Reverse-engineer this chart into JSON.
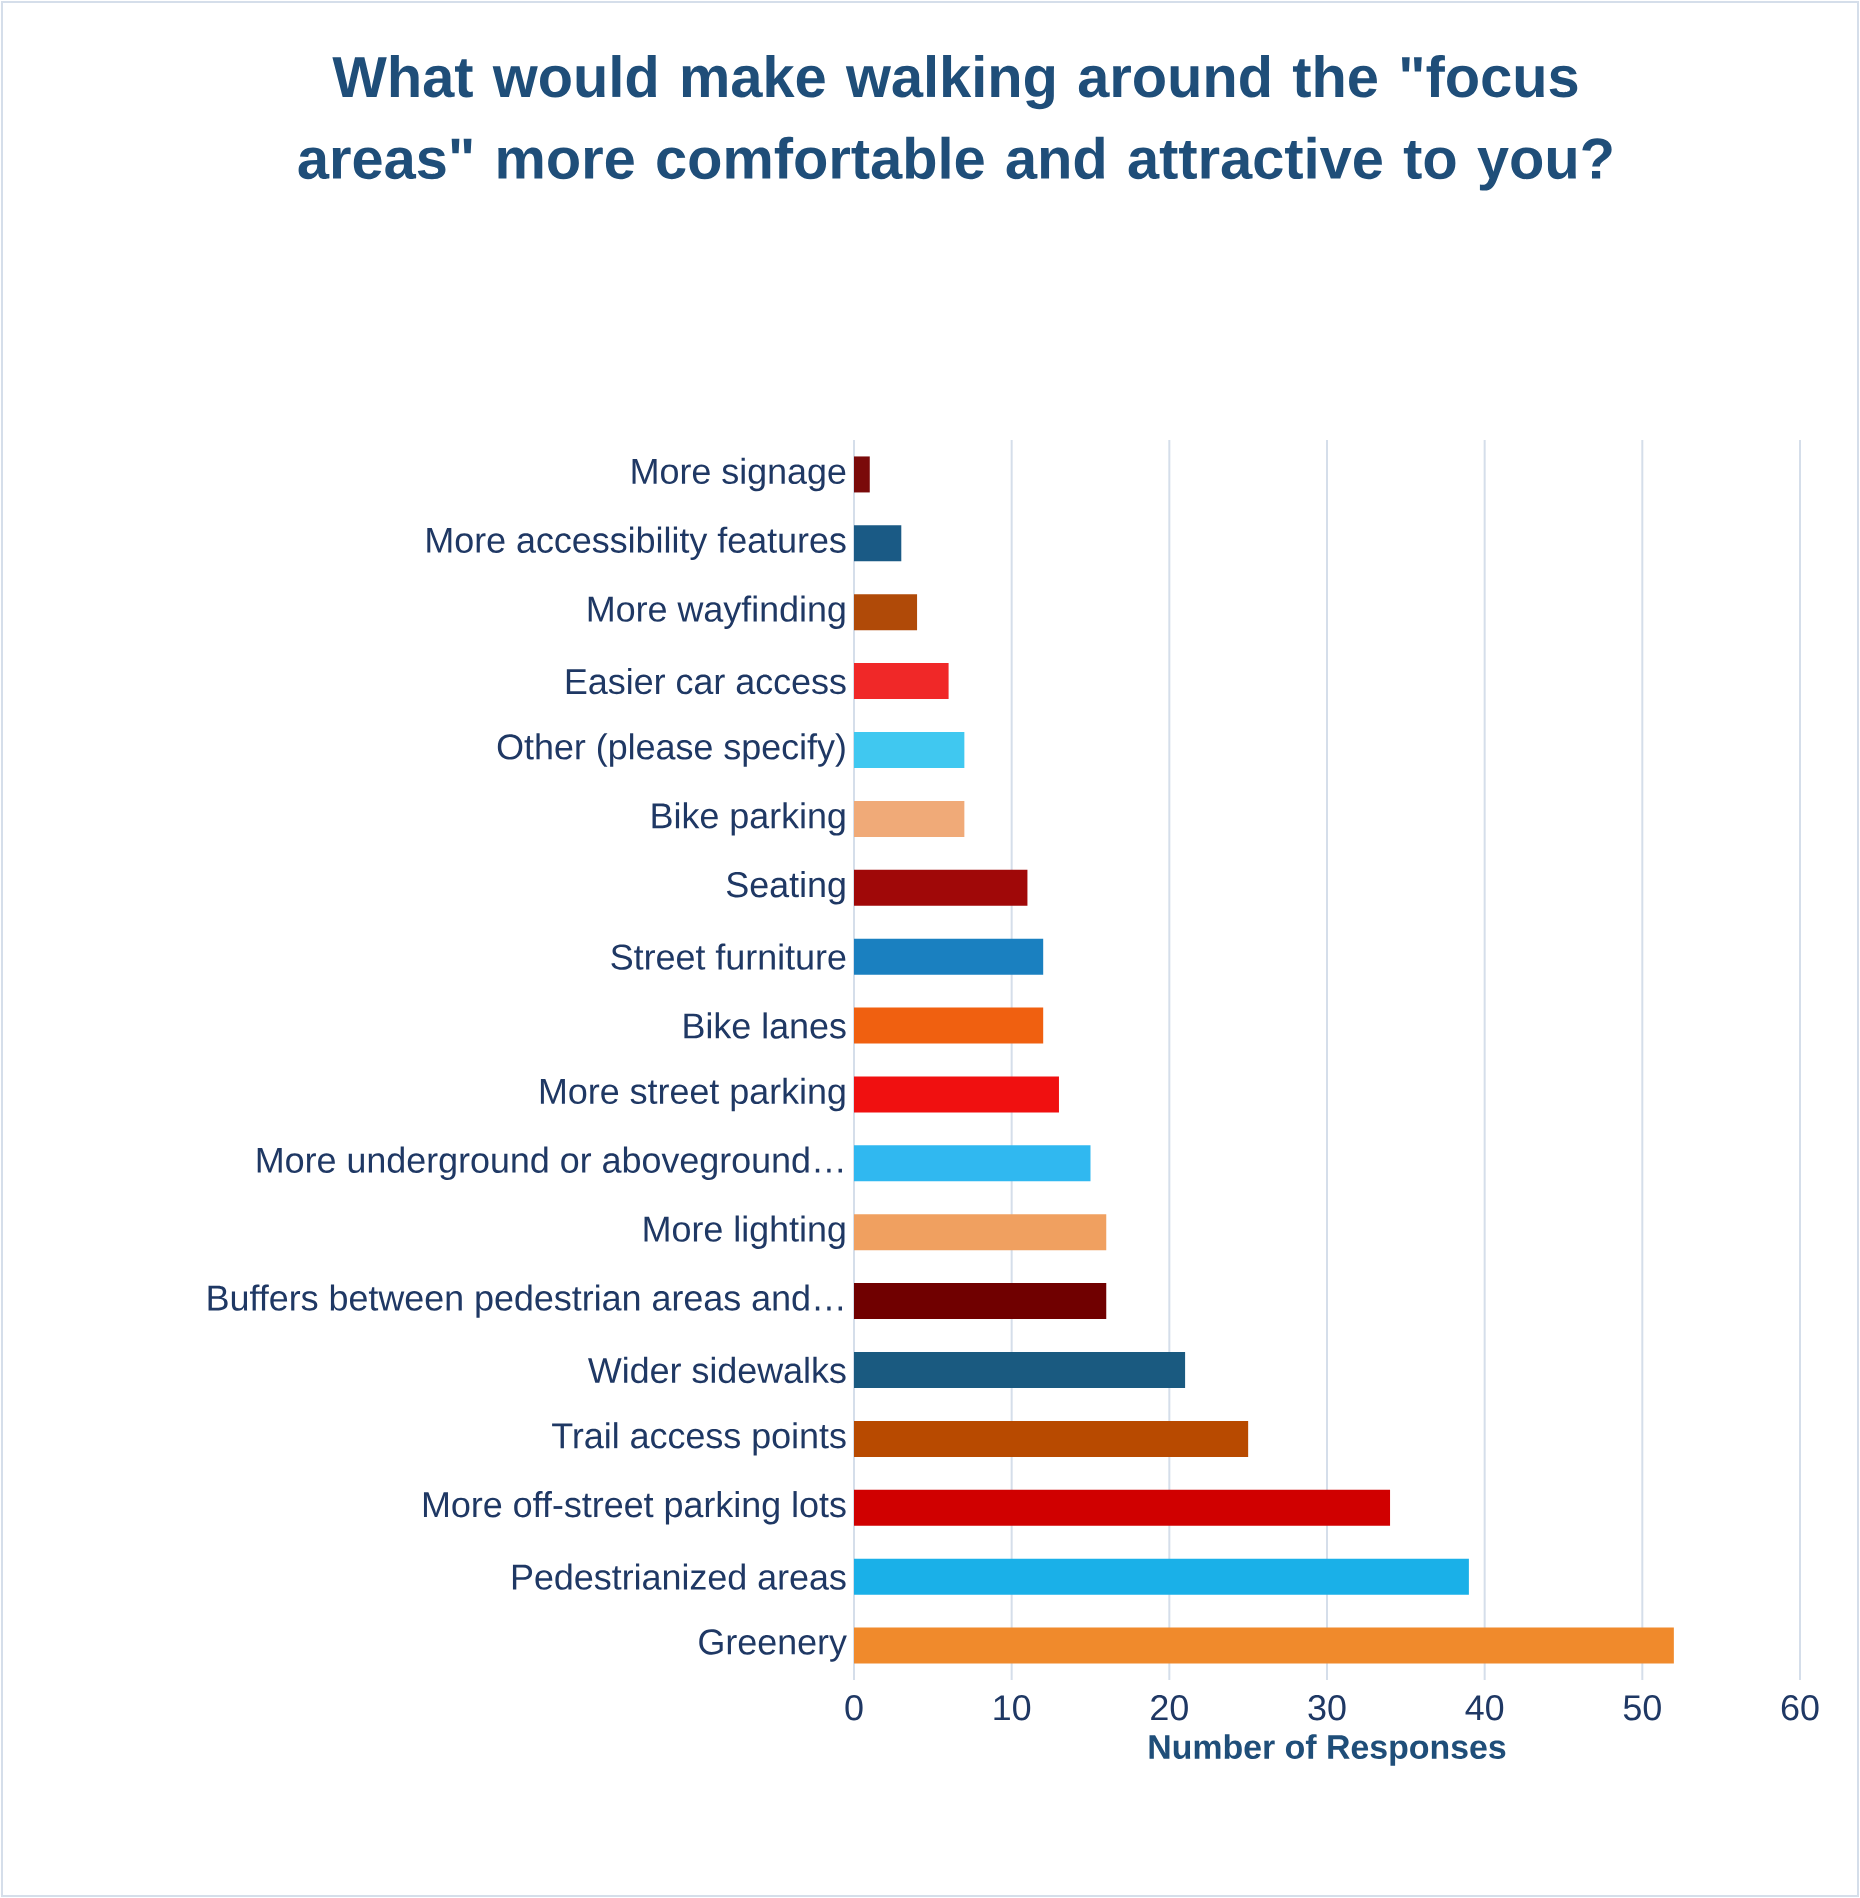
{
  "chart_data": {
    "type": "bar",
    "orientation": "horizontal",
    "title": "What would make walking around the \"focus areas\" more comfortable and attractive to you?",
    "xlabel": "Number of Responses",
    "categories": [
      "More signage",
      "More accessibility features",
      "More wayfinding",
      "Easier car access",
      "Other (please specify)",
      "Bike parking",
      "Seating",
      "Street furniture",
      "Bike lanes",
      "More street parking",
      "More underground or aboveground…",
      "More lighting",
      "Buffers between pedestrian areas and…",
      "Wider sidewalks",
      "Trail access points",
      "More off-street parking lots",
      "Pedestrianized areas",
      "Greenery"
    ],
    "values": [
      1,
      3,
      4,
      6,
      7,
      7,
      11,
      12,
      12,
      13,
      15,
      16,
      16,
      21,
      25,
      34,
      39,
      52
    ],
    "colors": [
      "#7a0a0a",
      "#1a5a85",
      "#b04a08",
      "#f02828",
      "#40c8f0",
      "#f0aa78",
      "#a00808",
      "#1a80c0",
      "#f06010",
      "#f01010",
      "#30b8f0",
      "#f0a060",
      "#700000",
      "#1a5a80",
      "#b84a00",
      "#d00000",
      "#1ab0e8",
      "#f08a2c"
    ],
    "xlim": [
      0,
      60
    ],
    "xticks": [
      0,
      10,
      20,
      30,
      40,
      50,
      60
    ],
    "grid": "x"
  }
}
